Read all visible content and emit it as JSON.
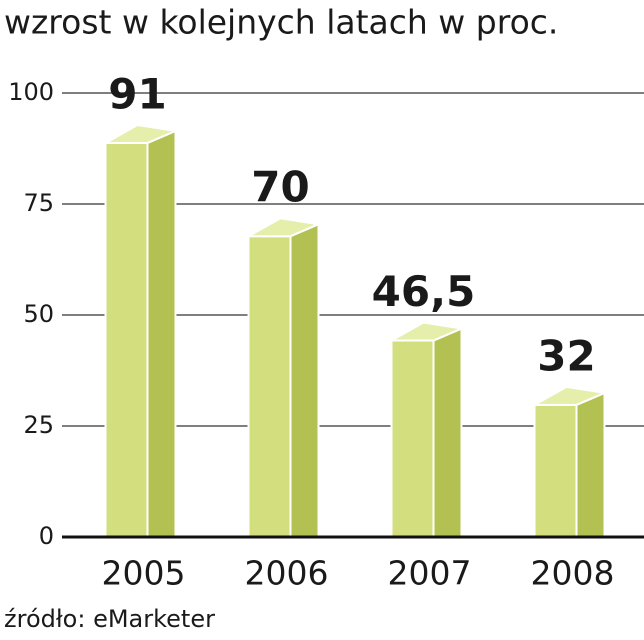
{
  "chart_data": {
    "type": "bar3d",
    "title": "wzrost w kolejnych latach w proc.",
    "source": "źródło: eMarketer",
    "categories": [
      "2005",
      "2006",
      "2007",
      "2008"
    ],
    "values": [
      91,
      70,
      46.5,
      32
    ],
    "value_labels": [
      "91",
      "70",
      "46,5",
      "32"
    ],
    "value_label_colors": [
      "#1a1a1a",
      "#1a1a1a",
      "#1a1a1a",
      "#c0103a"
    ],
    "color": "#d3df7e",
    "ylim": [
      0,
      100
    ],
    "yticks": [
      0,
      25,
      50,
      75,
      100
    ],
    "grid": true
  }
}
